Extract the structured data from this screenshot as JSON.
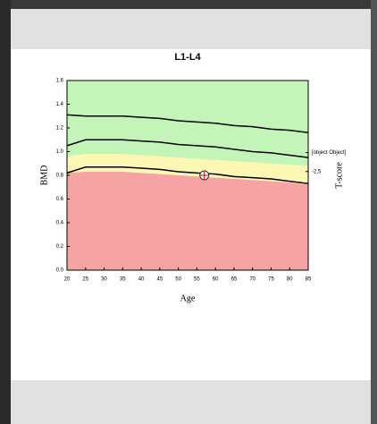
{
  "chart_data": {
    "type": "line",
    "title": "L1-L4",
    "x_label": "Age",
    "y_label": "BMD",
    "y2_label": "T-score",
    "x": [
      20,
      25,
      30,
      35,
      40,
      45,
      50,
      55,
      60,
      65,
      70,
      75,
      80,
      85
    ],
    "xlim": [
      20,
      85
    ],
    "xticks": [
      20,
      25,
      30,
      35,
      40,
      45,
      50,
      55,
      60,
      65,
      70,
      75,
      80,
      85
    ],
    "ylim": [
      0,
      1.6
    ],
    "yticks": [
      {
        "value": 0,
        "label": "0.0"
      },
      0.2,
      0.4,
      0.6,
      0.8,
      {
        "value": 1,
        "label": "1.0"
      },
      1.2,
      1.4,
      1.6
    ],
    "y2lim": [
      -10.3,
      4.7
    ],
    "y2ticks": [
      {
        "value": -1,
        "label": "-1.0"
      },
      -2.5
    ],
    "zones": [
      {
        "color": "#c4f5b8",
        "values": [
          1.6,
          1.6,
          1.6,
          1.6,
          1.6,
          1.6,
          1.6,
          1.6,
          1.6,
          1.6,
          1.6,
          1.6,
          1.6,
          1.6
        ]
      },
      {
        "color": "#fdf7b4",
        "values": [
          0.96,
          0.98,
          0.98,
          0.98,
          0.97,
          0.96,
          0.95,
          0.94,
          0.93,
          0.92,
          0.91,
          0.9,
          0.89,
          0.88
        ]
      },
      {
        "color": "#f5a3a3",
        "values": [
          0.82,
          0.83,
          0.83,
          0.83,
          0.82,
          0.81,
          0.8,
          0.79,
          0.78,
          0.77,
          0.76,
          0.75,
          0.74,
          0.72
        ]
      }
    ],
    "series": [
      {
        "color": "#000000",
        "values": [
          1.31,
          1.3,
          1.3,
          1.3,
          1.29,
          1.28,
          1.26,
          1.25,
          1.24,
          1.22,
          1.21,
          1.19,
          1.18,
          1.16
        ]
      },
      {
        "color": "#000000",
        "values": [
          1.05,
          1.1,
          1.1,
          1.1,
          1.09,
          1.08,
          1.06,
          1.05,
          1.04,
          1.02,
          1.0,
          0.99,
          0.97,
          0.95
        ]
      },
      {
        "color": "#000000",
        "values": [
          0.82,
          0.87,
          0.87,
          0.87,
          0.86,
          0.85,
          0.83,
          0.82,
          0.81,
          0.79,
          0.78,
          0.77,
          0.75,
          0.73
        ]
      }
    ],
    "patient": {
      "x": 57,
      "y": 0.8
    }
  }
}
